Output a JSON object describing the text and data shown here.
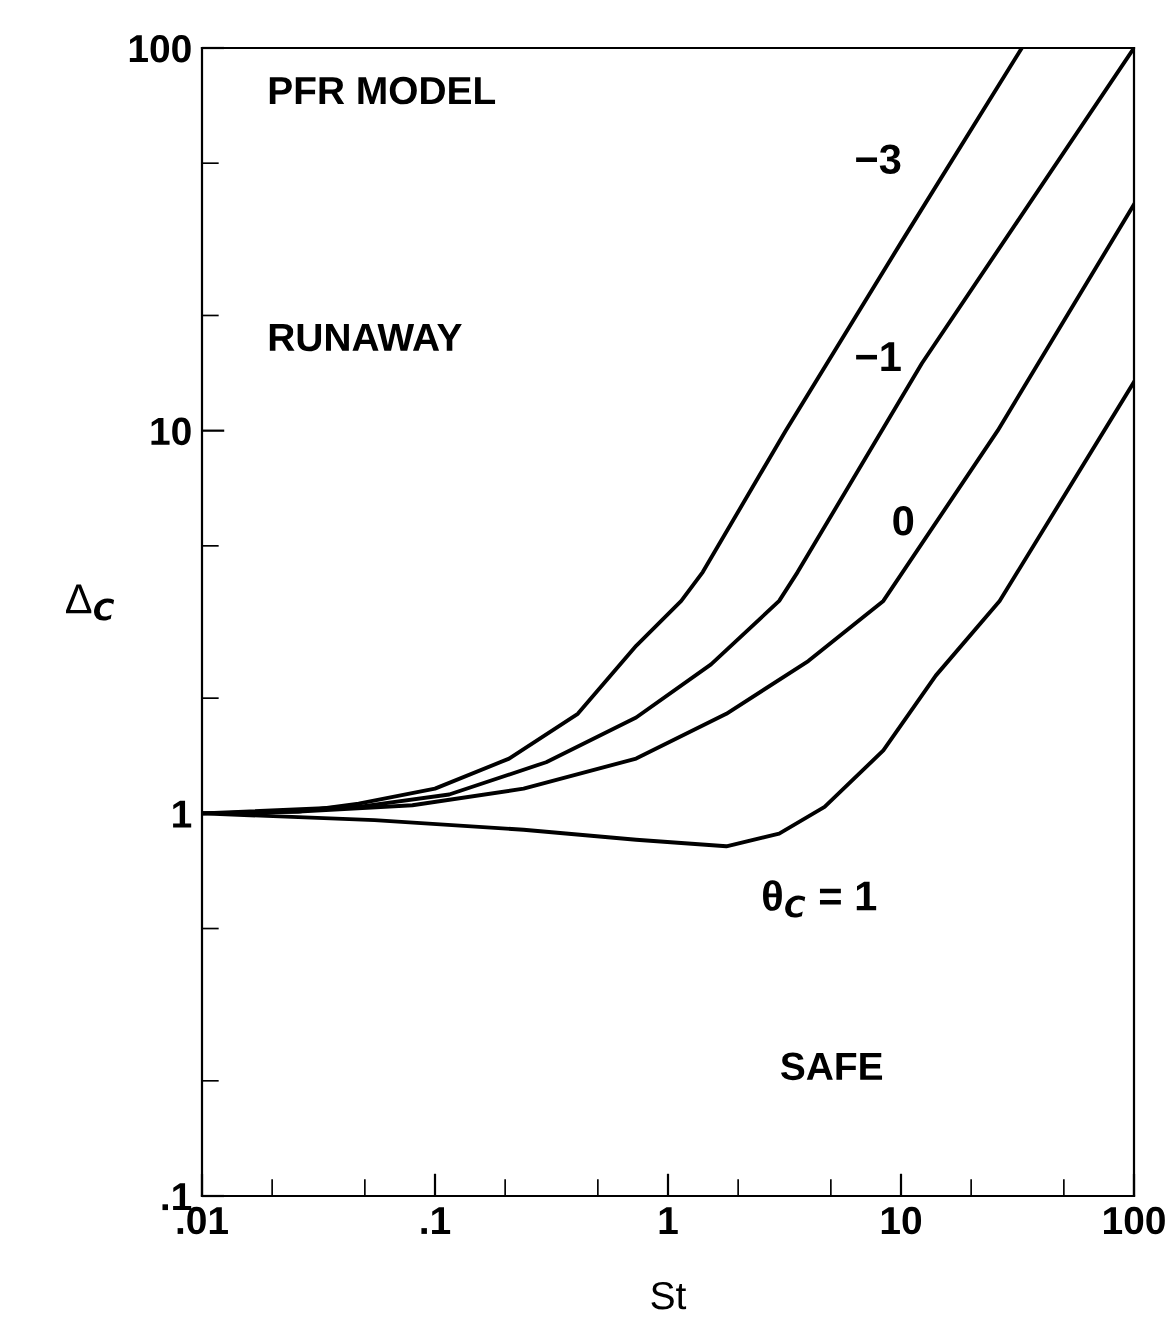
{
  "chart_data": {
    "type": "line",
    "xlabel": "St",
    "ylabel": "Δ$_{C}$",
    "log": "xy",
    "xlim": [
      0.01,
      100
    ],
    "ylim": [
      0.1,
      100
    ],
    "xticks": [
      {
        "value": 0.01,
        "label": ".01"
      },
      {
        "value": 0.02,
        "label": null
      },
      {
        "value": 0.05,
        "label": null
      },
      {
        "value": 0.1,
        "label": ".1"
      },
      {
        "value": 0.2,
        "label": null
      },
      {
        "value": 0.5,
        "label": null
      },
      1,
      {
        "value": 2,
        "label": null
      },
      {
        "value": 5,
        "label": null
      },
      10,
      {
        "value": 20,
        "label": null
      },
      {
        "value": 50,
        "label": null
      },
      100
    ],
    "yticks": [
      {
        "value": 0.1,
        "label": ".1"
      },
      {
        "value": 0.2,
        "label": null
      },
      {
        "value": 0.5,
        "label": null
      },
      1,
      {
        "value": 2,
        "label": null
      },
      {
        "value": 5,
        "label": null
      },
      10,
      {
        "value": 20,
        "label": null
      },
      {
        "value": 50,
        "label": null
      },
      100
    ],
    "grid": false,
    "legend": false,
    "marker": "none",
    "line_style": "solid",
    "annotations": [
      "PFR MODEL",
      "RUNAWAY",
      "SAFE"
    ],
    "series": [
      {
        "name": "−3",
        "color": "#000000",
        "x": [
          0.01,
          0.026,
          0.047,
          0.1,
          0.208,
          0.41,
          0.73,
          1.14,
          1.41,
          3.2,
          10,
          33
        ],
        "values": [
          1.0,
          1.01,
          1.06,
          1.16,
          1.39,
          1.82,
          2.74,
          3.59,
          4.27,
          10,
          31,
          100
        ]
      },
      {
        "name": "−1",
        "color": "#000000",
        "x": [
          0.01,
          0.047,
          0.115,
          0.3,
          0.73,
          1.53,
          3.0,
          3.6,
          12.3,
          100
        ],
        "values": [
          1.0,
          1.04,
          1.12,
          1.36,
          1.78,
          2.45,
          3.59,
          4.27,
          15,
          100
        ]
      },
      {
        "name": "0",
        "color": "#000000",
        "x": [
          0.01,
          0.026,
          0.08,
          0.24,
          0.73,
          1.78,
          4.0,
          8.4,
          26,
          100
        ],
        "values": [
          1.0,
          1.01,
          1.05,
          1.16,
          1.39,
          1.82,
          2.5,
          3.59,
          10,
          39
        ]
      },
      {
        "name": "θ$_{C}$ = 1",
        "color": "#000000",
        "x": [
          0.01,
          0.055,
          0.24,
          0.73,
          1.78,
          3.0,
          4.7,
          8.4,
          14.1,
          26.5,
          31.6,
          100
        ],
        "values": [
          1.0,
          0.96,
          0.906,
          0.853,
          0.82,
          0.885,
          1.04,
          1.46,
          2.29,
          3.59,
          4.27,
          13.4
        ]
      }
    ]
  }
}
